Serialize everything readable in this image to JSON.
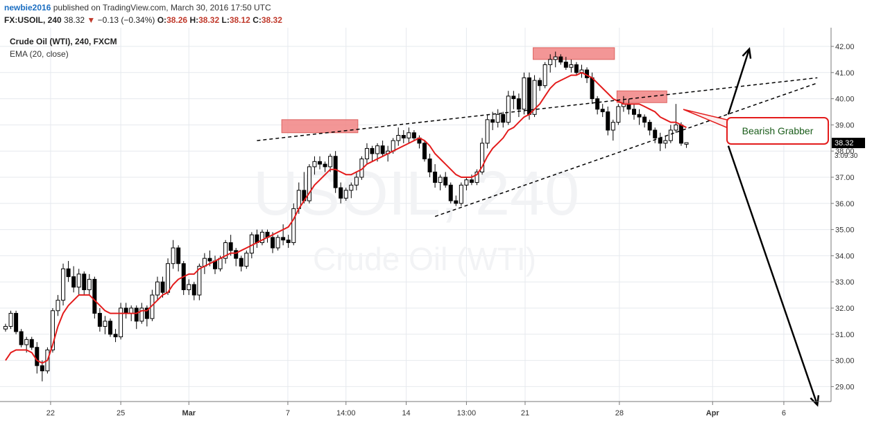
{
  "header": {
    "author": "newbie2016",
    "published": "published on TradingView.com, March 30, 2016 17:50 UTC",
    "symbol": "FX:USOIL, 240",
    "last": "38.32",
    "change": "−0.13 (−0.34%)",
    "open_label": "O:",
    "open": "38.26",
    "high_label": "H:",
    "high": "38.32",
    "low_label": "L:",
    "low": "38.12",
    "close_label": "C:",
    "close": "38.32"
  },
  "legend": {
    "instrument": "Crude Oil (WTI), 240, FXCM",
    "indicator": "EMA (20, close)"
  },
  "watermark": {
    "line1": "USOIL, 240",
    "line2": "Crude Oil (WTI)"
  },
  "annotation": {
    "text": "Bearish Grabber"
  },
  "colors": {
    "ema": "#e31b1b",
    "zone": "#f28b8b",
    "callout_border": "#e31b1b",
    "callout_text": "#1a5c1a",
    "price_tag": "#000000"
  },
  "chart_data": {
    "type": "candlestick",
    "ylim": [
      28.3,
      42.3
    ],
    "y_ticks": [
      "42.00",
      "41.00",
      "40.00",
      "39.00",
      "38.00",
      "37.00",
      "36.00",
      "35.00",
      "34.00",
      "33.00",
      "32.00",
      "31.00",
      "30.00",
      "29.00"
    ],
    "x_ticks": [
      "22",
      "25",
      "Mar",
      "7",
      "14:00",
      "14",
      "13:00",
      "21",
      "28",
      "Apr",
      "6"
    ],
    "last_price": "38.32",
    "countdown": "3:09:30",
    "candles": [
      [
        31.2,
        31.4,
        31.1,
        31.3
      ],
      [
        31.3,
        31.9,
        31.2,
        31.8
      ],
      [
        31.8,
        31.9,
        31.0,
        31.1
      ],
      [
        31.1,
        31.2,
        30.5,
        30.6
      ],
      [
        30.6,
        30.9,
        30.3,
        30.8
      ],
      [
        30.8,
        30.9,
        30.4,
        30.5
      ],
      [
        30.5,
        30.7,
        29.5,
        29.8
      ],
      [
        29.8,
        30.0,
        29.2,
        29.6
      ],
      [
        29.6,
        30.5,
        29.5,
        30.4
      ],
      [
        30.4,
        32.0,
        30.3,
        31.9
      ],
      [
        31.9,
        32.5,
        31.7,
        32.3
      ],
      [
        32.3,
        33.7,
        32.1,
        33.5
      ],
      [
        33.5,
        33.8,
        33.0,
        33.2
      ],
      [
        33.2,
        33.6,
        32.6,
        32.8
      ],
      [
        32.8,
        33.5,
        32.5,
        33.3
      ],
      [
        33.3,
        33.4,
        32.5,
        32.7
      ],
      [
        32.7,
        33.3,
        32.5,
        33.1
      ],
      [
        33.1,
        33.2,
        31.6,
        31.8
      ],
      [
        31.8,
        32.0,
        31.1,
        31.3
      ],
      [
        31.3,
        31.7,
        31.0,
        31.5
      ],
      [
        31.5,
        31.6,
        30.9,
        31.0
      ],
      [
        31.0,
        31.2,
        30.7,
        30.9
      ],
      [
        30.9,
        32.2,
        30.8,
        32.0
      ],
      [
        32.0,
        32.2,
        31.6,
        31.8
      ],
      [
        31.8,
        32.1,
        31.5,
        32.0
      ],
      [
        32.0,
        32.1,
        31.2,
        31.5
      ],
      [
        31.5,
        32.2,
        31.4,
        32.0
      ],
      [
        32.0,
        32.1,
        31.3,
        31.6
      ],
      [
        31.6,
        32.7,
        31.5,
        32.5
      ],
      [
        32.5,
        33.2,
        32.3,
        33.0
      ],
      [
        33.0,
        33.2,
        32.4,
        32.6
      ],
      [
        32.6,
        33.9,
        32.5,
        33.7
      ],
      [
        33.7,
        34.6,
        33.5,
        34.3
      ],
      [
        34.3,
        34.4,
        33.4,
        33.7
      ],
      [
        33.7,
        33.8,
        32.5,
        32.7
      ],
      [
        32.7,
        33.1,
        32.5,
        32.9
      ],
      [
        32.9,
        33.0,
        32.3,
        32.5
      ],
      [
        32.5,
        33.7,
        32.3,
        33.6
      ],
      [
        33.6,
        34.1,
        33.3,
        33.9
      ],
      [
        33.9,
        34.2,
        33.6,
        33.8
      ],
      [
        33.8,
        34.0,
        33.3,
        33.5
      ],
      [
        33.5,
        34.0,
        33.4,
        33.9
      ],
      [
        33.9,
        34.6,
        33.7,
        34.5
      ],
      [
        34.5,
        34.8,
        34.0,
        34.2
      ],
      [
        34.2,
        34.3,
        33.6,
        33.9
      ],
      [
        33.9,
        34.0,
        33.4,
        33.6
      ],
      [
        33.6,
        34.2,
        33.5,
        34.1
      ],
      [
        34.1,
        34.9,
        33.9,
        34.8
      ],
      [
        34.8,
        35.0,
        34.3,
        34.5
      ],
      [
        34.5,
        35.0,
        34.4,
        34.9
      ],
      [
        34.9,
        35.0,
        34.5,
        34.7
      ],
      [
        34.7,
        34.9,
        34.1,
        34.3
      ],
      [
        34.3,
        34.8,
        34.2,
        34.7
      ],
      [
        34.7,
        35.2,
        34.4,
        34.6
      ],
      [
        34.6,
        34.8,
        34.3,
        34.5
      ],
      [
        34.5,
        36.0,
        34.4,
        35.8
      ],
      [
        35.8,
        36.8,
        35.6,
        36.5
      ],
      [
        36.5,
        37.2,
        36.0,
        36.1
      ],
      [
        36.1,
        37.5,
        36.0,
        37.4
      ],
      [
        37.4,
        37.8,
        37.1,
        37.6
      ],
      [
        37.6,
        37.8,
        37.3,
        37.5
      ],
      [
        37.5,
        37.6,
        37.2,
        37.4
      ],
      [
        37.4,
        37.9,
        37.2,
        37.8
      ],
      [
        37.8,
        38.0,
        36.4,
        36.6
      ],
      [
        36.6,
        36.8,
        36.0,
        36.2
      ],
      [
        36.2,
        36.6,
        36.1,
        36.5
      ],
      [
        36.5,
        36.8,
        36.2,
        36.7
      ],
      [
        36.7,
        37.2,
        36.5,
        37.0
      ],
      [
        37.0,
        37.8,
        36.9,
        37.7
      ],
      [
        37.7,
        38.3,
        37.5,
        38.1
      ],
      [
        38.1,
        38.2,
        37.6,
        37.9
      ],
      [
        37.9,
        38.3,
        37.6,
        38.2
      ],
      [
        38.2,
        38.4,
        37.8,
        37.9
      ],
      [
        37.9,
        38.2,
        37.6,
        38.0
      ],
      [
        38.0,
        38.5,
        37.9,
        38.4
      ],
      [
        38.4,
        38.9,
        38.2,
        38.6
      ],
      [
        38.6,
        38.8,
        38.3,
        38.5
      ],
      [
        38.5,
        38.9,
        38.3,
        38.7
      ],
      [
        38.7,
        38.8,
        38.4,
        38.5
      ],
      [
        38.5,
        38.6,
        38.1,
        38.3
      ],
      [
        38.3,
        38.4,
        37.6,
        37.7
      ],
      [
        37.7,
        37.9,
        37.0,
        37.2
      ],
      [
        37.2,
        37.5,
        36.6,
        36.8
      ],
      [
        36.8,
        37.1,
        36.5,
        37.0
      ],
      [
        37.0,
        37.2,
        36.6,
        36.7
      ],
      [
        36.7,
        36.8,
        36.0,
        36.1
      ],
      [
        36.1,
        36.3,
        35.9,
        36.0
      ],
      [
        36.0,
        36.8,
        35.9,
        36.7
      ],
      [
        36.7,
        37.0,
        36.5,
        36.9
      ],
      [
        36.9,
        37.1,
        36.7,
        36.8
      ],
      [
        36.8,
        37.3,
        36.7,
        37.2
      ],
      [
        37.2,
        38.5,
        37.1,
        38.3
      ],
      [
        38.3,
        39.4,
        38.1,
        39.2
      ],
      [
        39.2,
        39.5,
        38.8,
        39.1
      ],
      [
        39.1,
        39.6,
        38.9,
        39.4
      ],
      [
        39.4,
        39.5,
        38.9,
        39.1
      ],
      [
        39.1,
        40.3,
        39.0,
        40.1
      ],
      [
        40.1,
        40.3,
        39.6,
        40.0
      ],
      [
        40.0,
        40.2,
        39.3,
        39.6
      ],
      [
        39.6,
        41.0,
        39.4,
        40.8
      ],
      [
        40.8,
        41.0,
        39.2,
        39.4
      ],
      [
        39.4,
        40.9,
        39.3,
        40.7
      ],
      [
        40.7,
        40.8,
        40.3,
        40.5
      ],
      [
        40.5,
        41.4,
        40.4,
        41.3
      ],
      [
        41.3,
        41.7,
        41.0,
        41.5
      ],
      [
        41.5,
        41.8,
        41.2,
        41.6
      ],
      [
        41.6,
        41.7,
        41.3,
        41.4
      ],
      [
        41.4,
        41.6,
        41.1,
        41.2
      ],
      [
        41.2,
        41.5,
        41.0,
        41.3
      ],
      [
        41.3,
        41.4,
        40.9,
        41.0
      ],
      [
        41.0,
        41.3,
        40.8,
        41.1
      ],
      [
        41.1,
        41.2,
        40.6,
        40.8
      ],
      [
        40.8,
        41.0,
        39.8,
        40.0
      ],
      [
        40.0,
        40.1,
        39.4,
        39.6
      ],
      [
        39.6,
        39.8,
        39.3,
        39.5
      ],
      [
        39.5,
        39.7,
        38.6,
        38.8
      ],
      [
        38.8,
        39.2,
        38.4,
        39.1
      ],
      [
        39.1,
        39.8,
        39.0,
        39.7
      ],
      [
        39.7,
        40.1,
        39.5,
        39.8
      ],
      [
        39.8,
        40.0,
        39.4,
        39.6
      ],
      [
        39.6,
        39.8,
        39.2,
        39.4
      ],
      [
        39.4,
        39.6,
        39.0,
        39.3
      ],
      [
        39.3,
        39.4,
        38.9,
        39.1
      ],
      [
        39.1,
        39.2,
        38.6,
        38.8
      ],
      [
        38.8,
        38.9,
        38.3,
        38.5
      ],
      [
        38.5,
        38.7,
        38.0,
        38.3
      ],
      [
        38.3,
        38.6,
        38.1,
        38.4
      ],
      [
        38.4,
        39.0,
        38.3,
        38.8
      ],
      [
        38.8,
        39.8,
        38.7,
        39.0
      ],
      [
        39.0,
        39.1,
        38.2,
        38.3
      ],
      [
        38.26,
        38.32,
        38.12,
        38.32
      ]
    ],
    "ema": [
      30.0,
      30.3,
      30.4,
      30.4,
      30.4,
      30.3,
      30.0,
      29.9,
      30.0,
      30.6,
      31.3,
      31.8,
      32.1,
      32.3,
      32.5,
      32.5,
      32.5,
      32.3,
      32.1,
      31.9,
      31.8,
      31.8,
      31.8,
      31.8,
      31.8,
      31.8,
      31.9,
      31.9,
      32.1,
      32.3,
      32.5,
      32.6,
      32.9,
      33.1,
      33.2,
      33.3,
      33.3,
      33.5,
      33.6,
      33.7,
      33.8,
      33.9,
      34.0,
      34.1,
      34.1,
      34.2,
      34.3,
      34.4,
      34.5,
      34.6,
      34.7,
      34.8,
      34.9,
      35.0,
      35.1,
      35.4,
      35.8,
      36.1,
      36.4,
      36.7,
      36.9,
      37.1,
      37.3,
      37.3,
      37.2,
      37.1,
      37.1,
      37.2,
      37.3,
      37.5,
      37.6,
      37.7,
      37.8,
      37.9,
      38.0,
      38.1,
      38.2,
      38.3,
      38.4,
      38.5,
      38.4,
      38.2,
      37.9,
      37.7,
      37.5,
      37.3,
      37.1,
      37.0,
      37.0,
      37.0,
      37.1,
      37.4,
      37.8,
      38.1,
      38.3,
      38.5,
      38.8,
      38.9,
      39.1,
      39.3,
      39.4,
      39.6,
      39.8,
      40.1,
      40.4,
      40.6,
      40.7,
      40.8,
      40.9,
      40.9,
      41.0,
      40.9,
      40.8,
      40.6,
      40.4,
      40.2,
      40.0,
      39.9,
      39.8,
      39.8,
      39.8,
      39.8,
      39.7,
      39.6,
      39.5,
      39.3,
      39.2,
      39.1,
      39.1,
      39.0,
      38.9
    ],
    "resistance_zones": [
      {
        "from_index": 53,
        "to_index": 67,
        "low": 38.7,
        "high": 39.2
      },
      {
        "from_index": 101,
        "to_index": 116,
        "low": 41.5,
        "high": 41.95
      },
      {
        "from_index": 117,
        "to_index": 126,
        "low": 39.85,
        "high": 40.3
      }
    ],
    "trendlines": [
      {
        "from": [
          48,
          38.4
        ],
        "to": [
          155,
          40.8
        ],
        "style": "dashed"
      },
      {
        "from": [
          82,
          35.5
        ],
        "to": [
          155,
          40.6
        ],
        "style": "dashed"
      }
    ],
    "arrows": [
      {
        "from": [
          138,
          39.4
        ],
        "to": [
          142,
          41.9
        ]
      },
      {
        "from": [
          138,
          38.2
        ],
        "to": [
          155,
          28.3
        ]
      }
    ]
  }
}
